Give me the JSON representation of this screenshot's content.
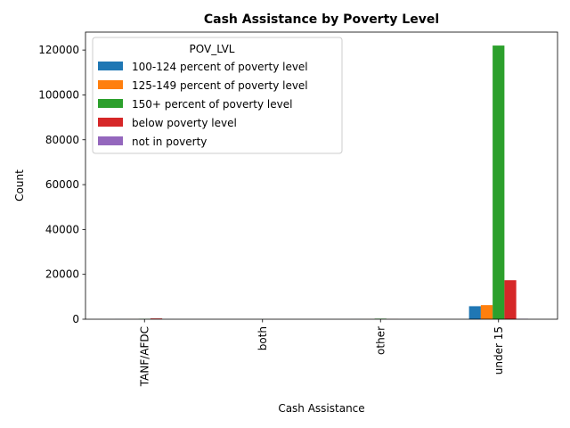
{
  "chart_data": {
    "type": "bar",
    "title": "Cash Assistance by Poverty Level",
    "xlabel": "Cash Assistance",
    "ylabel": "Count",
    "categories": [
      "TANF/AFDC",
      "both",
      "other",
      "under 15"
    ],
    "legend_title": "POV_LVL",
    "legend_position": "upper-left",
    "ylim": [
      0,
      128000
    ],
    "yticks": [
      0,
      20000,
      40000,
      60000,
      80000,
      100000,
      120000
    ],
    "grid": false,
    "series": [
      {
        "name": "100-124 percent of poverty level",
        "color": "#1f77b4",
        "values": [
          30,
          0,
          20,
          5800
        ]
      },
      {
        "name": "125-149 percent of poverty level",
        "color": "#ff7f0e",
        "values": [
          40,
          0,
          20,
          6300
        ]
      },
      {
        "name": "150+ percent of poverty level",
        "color": "#2ca02c",
        "values": [
          150,
          5,
          250,
          122000
        ]
      },
      {
        "name": "below poverty level",
        "color": "#d62728",
        "values": [
          350,
          5,
          50,
          17400
        ]
      },
      {
        "name": "not in poverty",
        "color": "#9467bd",
        "values": [
          10,
          0,
          0,
          200
        ]
      }
    ]
  }
}
